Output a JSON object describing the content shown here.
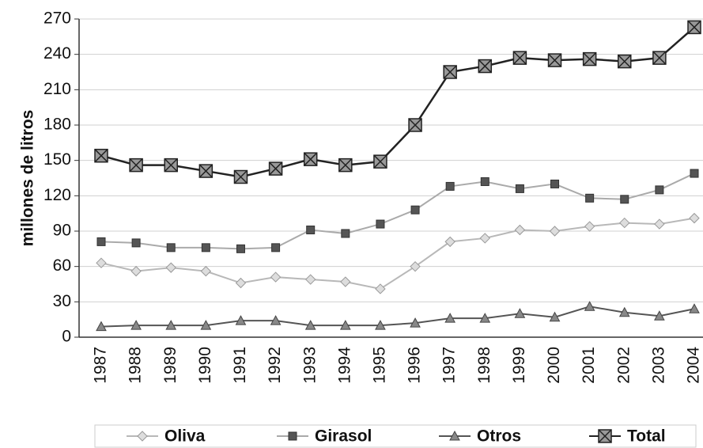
{
  "chart_data": {
    "type": "line",
    "y_label": "millones de litros",
    "categories": [
      "1987",
      "1988",
      "1989",
      "1990",
      "1991",
      "1992",
      "1993",
      "1994",
      "1995",
      "1996",
      "1997",
      "1998",
      "1999",
      "2000",
      "2001",
      "2002",
      "2003",
      "2004"
    ],
    "ylim": [
      0,
      270
    ],
    "yticks": [
      0,
      30,
      60,
      90,
      120,
      150,
      180,
      210,
      240,
      270
    ],
    "grid": true,
    "legend": "bottom",
    "series": [
      {
        "name": "Oliva",
        "color": "#b8b8b8",
        "marker": "diamond",
        "values": [
          63,
          56,
          59,
          56,
          46,
          51,
          49,
          47,
          41,
          60,
          81,
          84,
          91,
          90,
          94,
          97,
          96,
          101
        ]
      },
      {
        "name": "Girasol",
        "color": "#aaaaaa",
        "marker": "square",
        "values": [
          81,
          80,
          76,
          76,
          75,
          76,
          91,
          88,
          96,
          108,
          128,
          132,
          126,
          130,
          118,
          117,
          125,
          139
        ]
      },
      {
        "name": "Otros",
        "color": "#555555",
        "marker": "triangle",
        "values": [
          9,
          10,
          10,
          10,
          14,
          14,
          10,
          10,
          10,
          12,
          16,
          16,
          20,
          17,
          26,
          21,
          18,
          24
        ]
      },
      {
        "name": "Total",
        "color": "#222222",
        "marker": "square-x",
        "values": [
          154,
          146,
          146,
          141,
          136,
          143,
          151,
          146,
          149,
          180,
          225,
          230,
          237,
          235,
          236,
          234,
          237,
          263
        ]
      }
    ]
  }
}
